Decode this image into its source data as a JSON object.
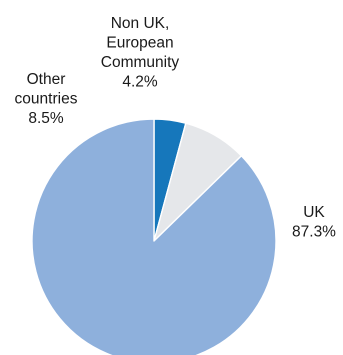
{
  "chart_data": {
    "type": "pie",
    "slices": [
      {
        "label": "UK",
        "label_lines": [
          "UK"
        ],
        "value": 87.3,
        "value_text": "87.3%",
        "color": "#8eb0dc"
      },
      {
        "label": "Other countries",
        "label_lines": [
          "Other",
          "countries"
        ],
        "value": 8.5,
        "value_text": "8.5%",
        "color": "#e5e7ea"
      },
      {
        "label": "Non UK, European Community",
        "label_lines": [
          "Non UK,",
          "European",
          "Community"
        ],
        "value": 4.2,
        "value_text": "4.2%",
        "color": "#1677bb"
      }
    ],
    "start": "12 o'clock",
    "direction": "clockwise",
    "legend": "none",
    "slice_border_color": "#ffffff"
  }
}
